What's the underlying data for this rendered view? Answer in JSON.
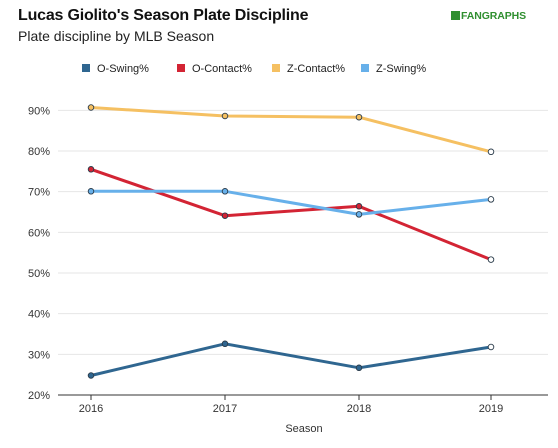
{
  "header": {
    "title": "Lucas Giolito's Season Plate Discipline",
    "subtitle": "Plate discipline by MLB Season",
    "logo_text": "FANGRAPHS"
  },
  "colors": {
    "grid": "#e6e6e6",
    "axis": "#333333"
  },
  "chart_data": {
    "type": "line",
    "title": "Lucas Giolito's Season Plate Discipline",
    "subtitle": "Plate discipline by MLB Season",
    "xlabel": "Season",
    "ylabel": "",
    "x": [
      2016,
      2017,
      2018,
      2019
    ],
    "x_tick_labels": [
      "2016",
      "2017",
      "2018",
      "2019"
    ],
    "ylim": [
      20,
      95
    ],
    "y_ticks": [
      20,
      30,
      40,
      50,
      60,
      70,
      80,
      90
    ],
    "y_tick_labels": [
      "20%",
      "30%",
      "40%",
      "50%",
      "60%",
      "70%",
      "80%",
      "90%"
    ],
    "grid": "horizontal",
    "legend_position": "top",
    "series": [
      {
        "name": "O-Swing%",
        "color": "#2f6690",
        "values": [
          24.8,
          32.6,
          26.7,
          31.8
        ]
      },
      {
        "name": "O-Contact%",
        "color": "#d32434",
        "values": [
          75.5,
          64.1,
          66.4,
          53.3
        ]
      },
      {
        "name": "Z-Contact%",
        "color": "#f5c062",
        "values": [
          90.7,
          88.6,
          88.3,
          79.8
        ]
      },
      {
        "name": "Z-Swing%",
        "color": "#67b0ea",
        "values": [
          70.1,
          70.1,
          64.4,
          68.1
        ]
      }
    ]
  }
}
